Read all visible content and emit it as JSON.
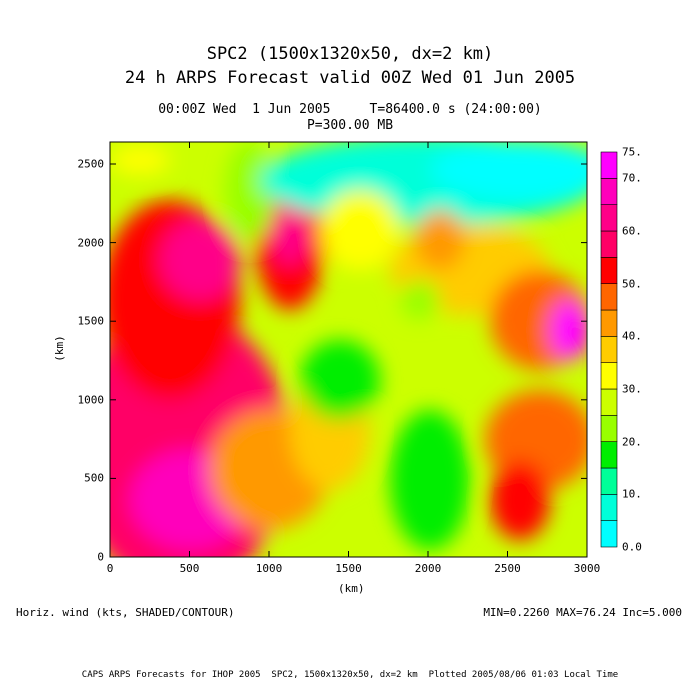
{
  "title": {
    "line1": "SPC2 (1500x1320x50, dx=2 km)",
    "line2": "24 h ARPS Forecast valid 00Z Wed 01 Jun 2005"
  },
  "subtitle": {
    "line1": "00:00Z Wed  1 Jun 2005     T=86400.0 s (24:00:00)",
    "line2": "P=300.00 MB"
  },
  "axes": {
    "xlabel": "(km)",
    "ylabel": "(km)",
    "xticks": [
      "0",
      "500",
      "1000",
      "1500",
      "2000",
      "2500",
      "3000"
    ],
    "yticks": [
      "0",
      "500",
      "1000",
      "1500",
      "2000",
      "2500"
    ],
    "xrange_km": [
      0,
      3000
    ],
    "yrange_km": [
      0,
      2640
    ]
  },
  "colorbar": {
    "labels": [
      "0.0",
      "10.",
      "20.",
      "30.",
      "40.",
      "50.",
      "60.",
      "70.",
      "75."
    ],
    "colors": [
      "#00ffff",
      "#00ffd9",
      "#00ff99",
      "#00ee00",
      "#99ff00",
      "#ccff00",
      "#ffff00",
      "#ffcc00",
      "#ff9900",
      "#ff6600",
      "#ff0000",
      "#ff0066",
      "#ff0088",
      "#ff00bb",
      "#ff00ff"
    ]
  },
  "field_label": "Horiz. wind (kts, SHADED/CONTOUR)",
  "stats": "MIN=0.2260 MAX=76.24 Inc=5.000",
  "footer": "CAPS ARPS Forecasts for IHOP 2005  SPC2, 1500x1320x50, dx=2 km  Plotted 2005/08/06 01:03 Local Time"
}
